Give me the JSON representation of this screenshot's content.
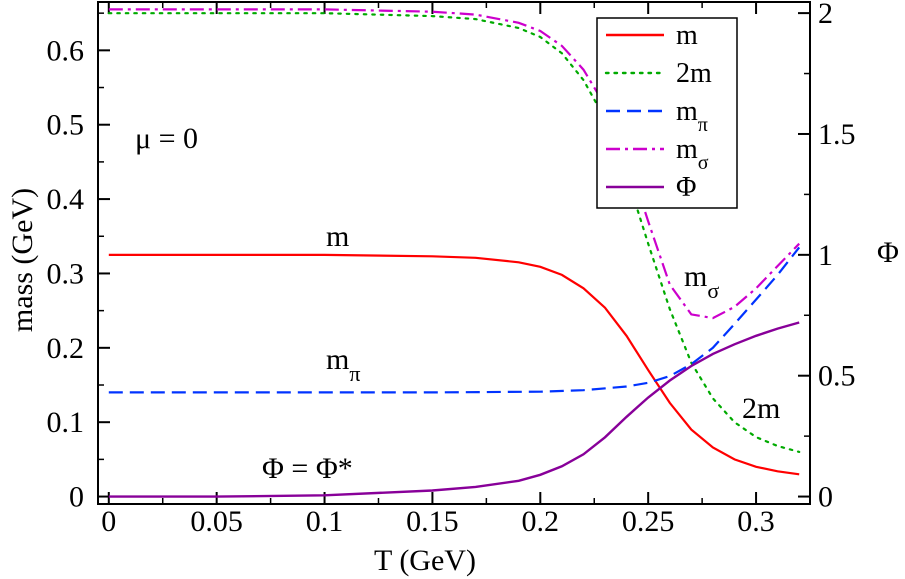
{
  "chart_data": {
    "type": "line",
    "xlabel": "T (GeV)",
    "ylabel": "mass (GeV)",
    "y2label": "Φ",
    "xlim": [
      -0.005,
      0.325
    ],
    "ylim": [
      -0.01,
      0.665
    ],
    "y2lim": [
      -0.0308,
      2.046
    ],
    "xticks": [
      "0",
      "0.05",
      "0.1",
      "0.15",
      "0.2",
      "0.25",
      "0.3"
    ],
    "yticks": [
      "0",
      "0.1",
      "0.2",
      "0.3",
      "0.4",
      "0.5",
      "0.6"
    ],
    "y2ticks": [
      "0",
      "0.5",
      "1",
      "1.5",
      "2"
    ],
    "grid": false,
    "legend_position": "top-right",
    "series": [
      {
        "name": "m",
        "axis": "left",
        "color": "#ff0000",
        "dash": "solid",
        "points": [
          [
            0,
            0.325
          ],
          [
            0.05,
            0.325
          ],
          [
            0.1,
            0.325
          ],
          [
            0.15,
            0.323
          ],
          [
            0.17,
            0.321
          ],
          [
            0.19,
            0.315
          ],
          [
            0.2,
            0.309
          ],
          [
            0.21,
            0.298
          ],
          [
            0.22,
            0.28
          ],
          [
            0.23,
            0.254
          ],
          [
            0.24,
            0.216
          ],
          [
            0.25,
            0.17
          ],
          [
            0.26,
            0.126
          ],
          [
            0.27,
            0.09
          ],
          [
            0.28,
            0.066
          ],
          [
            0.29,
            0.05
          ],
          [
            0.3,
            0.04
          ],
          [
            0.31,
            0.034
          ],
          [
            0.32,
            0.03
          ]
        ]
      },
      {
        "name": "2m",
        "axis": "left",
        "color": "#00aa00",
        "dash": "dotted",
        "points": [
          [
            0,
            0.65
          ],
          [
            0.1,
            0.65
          ],
          [
            0.15,
            0.646
          ],
          [
            0.17,
            0.642
          ],
          [
            0.19,
            0.63
          ],
          [
            0.2,
            0.618
          ],
          [
            0.21,
            0.596
          ],
          [
            0.22,
            0.56
          ],
          [
            0.23,
            0.508
          ],
          [
            0.24,
            0.432
          ],
          [
            0.25,
            0.34
          ],
          [
            0.26,
            0.252
          ],
          [
            0.27,
            0.18
          ],
          [
            0.28,
            0.132
          ],
          [
            0.29,
            0.1
          ],
          [
            0.3,
            0.08
          ],
          [
            0.31,
            0.068
          ],
          [
            0.32,
            0.06
          ]
        ]
      },
      {
        "name": "m_π",
        "axis": "left",
        "color": "#0033ff",
        "dash": "dashed",
        "points": [
          [
            0,
            0.14
          ],
          [
            0.1,
            0.14
          ],
          [
            0.15,
            0.14
          ],
          [
            0.2,
            0.141
          ],
          [
            0.22,
            0.143
          ],
          [
            0.24,
            0.148
          ],
          [
            0.25,
            0.153
          ],
          [
            0.26,
            0.162
          ],
          [
            0.27,
            0.178
          ],
          [
            0.28,
            0.2
          ],
          [
            0.29,
            0.232
          ],
          [
            0.3,
            0.265
          ],
          [
            0.31,
            0.298
          ],
          [
            0.32,
            0.335
          ]
        ]
      },
      {
        "name": "m_σ",
        "axis": "left",
        "color": "#cc00cc",
        "dash": "dashdot",
        "points": [
          [
            0,
            0.655
          ],
          [
            0.1,
            0.655
          ],
          [
            0.15,
            0.652
          ],
          [
            0.17,
            0.648
          ],
          [
            0.19,
            0.637
          ],
          [
            0.2,
            0.626
          ],
          [
            0.21,
            0.606
          ],
          [
            0.22,
            0.574
          ],
          [
            0.23,
            0.526
          ],
          [
            0.24,
            0.46
          ],
          [
            0.25,
            0.37
          ],
          [
            0.26,
            0.285
          ],
          [
            0.27,
            0.245
          ],
          [
            0.28,
            0.24
          ],
          [
            0.29,
            0.255
          ],
          [
            0.3,
            0.28
          ],
          [
            0.31,
            0.31
          ],
          [
            0.32,
            0.34
          ]
        ]
      },
      {
        "name": "Φ",
        "axis": "right",
        "color": "#880099",
        "dash": "solid",
        "points": [
          [
            0,
            0
          ],
          [
            0.05,
            0.0
          ],
          [
            0.1,
            0.005
          ],
          [
            0.15,
            0.025
          ],
          [
            0.17,
            0.04
          ],
          [
            0.19,
            0.065
          ],
          [
            0.2,
            0.09
          ],
          [
            0.21,
            0.125
          ],
          [
            0.22,
            0.175
          ],
          [
            0.23,
            0.245
          ],
          [
            0.24,
            0.33
          ],
          [
            0.25,
            0.41
          ],
          [
            0.26,
            0.48
          ],
          [
            0.27,
            0.54
          ],
          [
            0.28,
            0.59
          ],
          [
            0.29,
            0.63
          ],
          [
            0.3,
            0.665
          ],
          [
            0.31,
            0.695
          ],
          [
            0.32,
            0.72
          ]
        ]
      }
    ],
    "legend": [
      {
        "label": "m",
        "sub": "",
        "color": "#ff0000",
        "dash": "solid"
      },
      {
        "label": "2m",
        "sub": "",
        "color": "#00aa00",
        "dash": "dotted"
      },
      {
        "label": "m",
        "sub": "π",
        "color": "#0033ff",
        "dash": "dashed"
      },
      {
        "label": "m",
        "sub": "σ",
        "color": "#cc00cc",
        "dash": "dashdot"
      },
      {
        "label": "Φ",
        "sub": "",
        "color": "#880099",
        "dash": "solid"
      }
    ],
    "annotations": {
      "mu": "μ = 0",
      "m_label": "m",
      "mpi_label": "m",
      "mpi_sub": "π",
      "phi_label": "Φ = Φ*",
      "msigma_label": "m",
      "msigma_sub": "σ",
      "twom_label": "2m"
    }
  }
}
